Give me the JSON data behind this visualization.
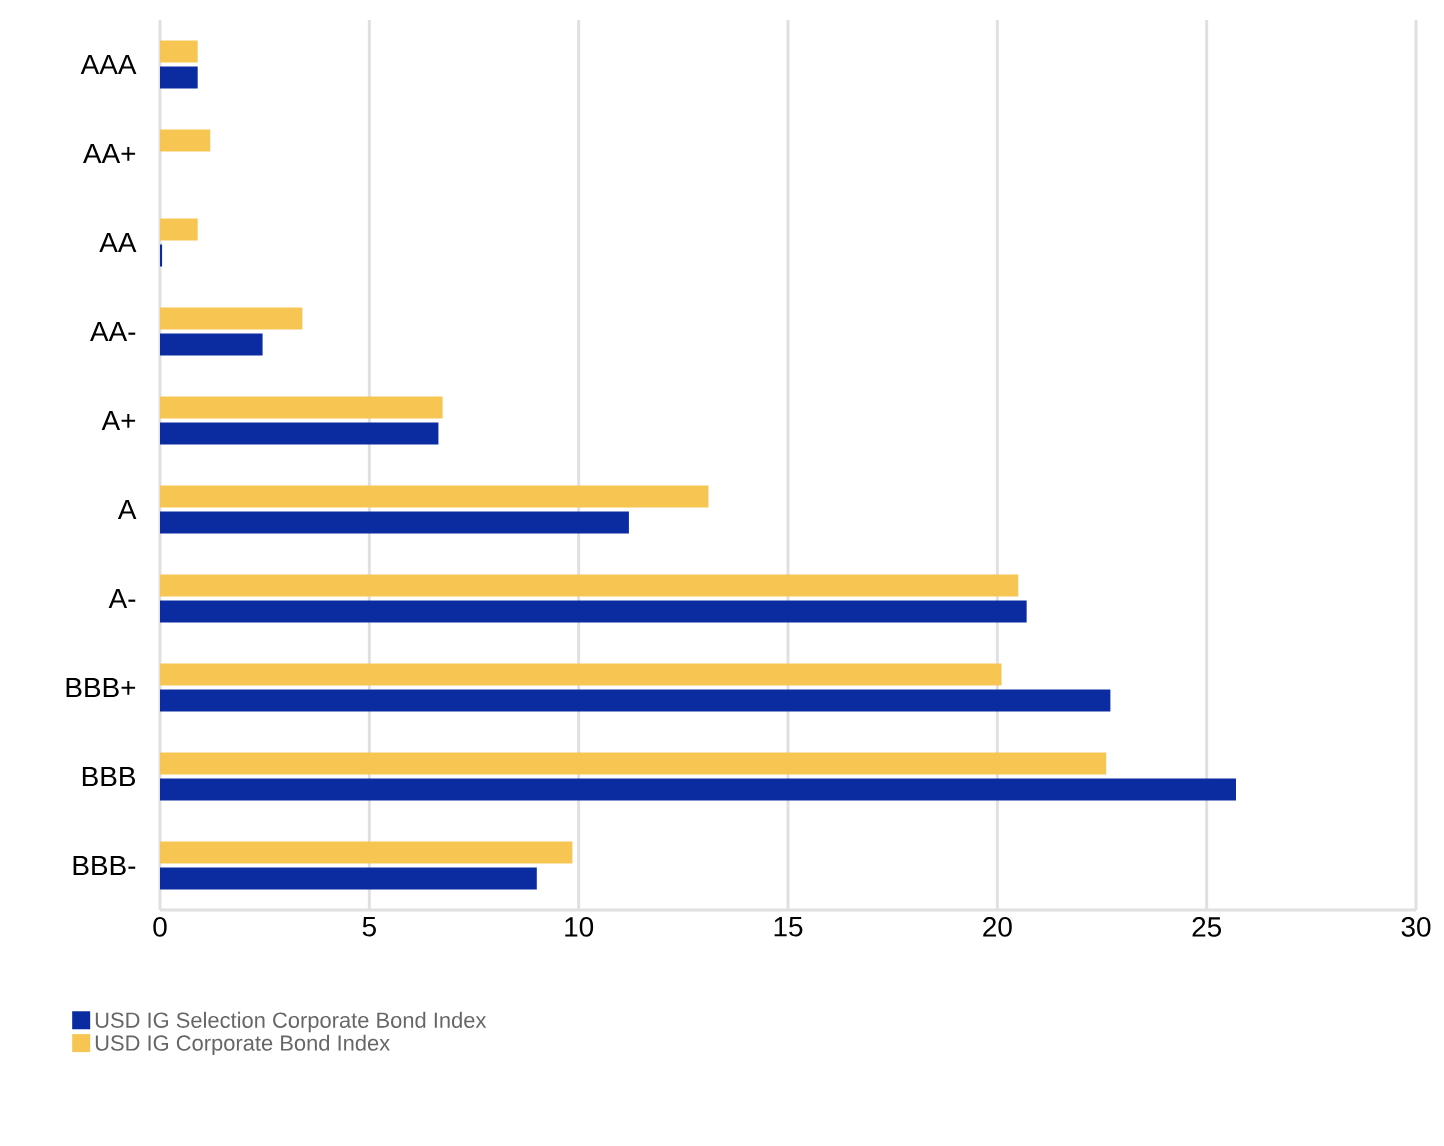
{
  "chart_data": {
    "type": "bar",
    "orientation": "horizontal",
    "categories": [
      "AAA",
      "AA+",
      "AA",
      "AA-",
      "A+",
      "A",
      "A-",
      "BBB+",
      "BBB",
      "BBB-"
    ],
    "series": [
      {
        "name": "USD IG Selection Corporate Bond Index",
        "color": "#0a2ca0",
        "values": [
          0.9,
          null,
          0.05,
          2.45,
          6.65,
          11.2,
          20.7,
          22.7,
          25.7,
          9.0
        ]
      },
      {
        "name": "USD IG Corporate Bond Index",
        "color": "#f7c552",
        "values": [
          0.9,
          1.2,
          0.9,
          3.4,
          6.75,
          13.1,
          20.5,
          20.1,
          22.6,
          9.85
        ]
      }
    ],
    "xlim": [
      0,
      30
    ],
    "xticks": [
      0,
      5,
      10,
      15,
      20,
      25,
      30
    ],
    "grid": "x",
    "legend": "bottom left"
  }
}
